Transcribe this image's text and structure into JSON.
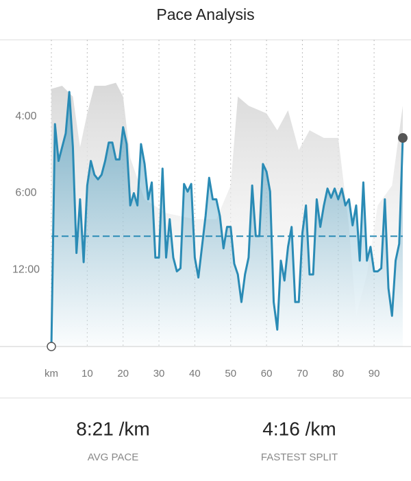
{
  "chart_data": {
    "type": "line",
    "title": "Pace Analysis",
    "xlim": [
      0,
      98
    ],
    "xticks": [
      {
        "value": 0,
        "label": "km"
      },
      10,
      20,
      30,
      40,
      50,
      60,
      70,
      80,
      90
    ],
    "ylim": [
      0,
      20
    ],
    "yticks": [
      {
        "value": 15,
        "label": "4:00"
      },
      {
        "value": 10,
        "label": "6:00"
      },
      {
        "value": 5,
        "label": "12:00"
      }
    ],
    "color": "#2a8bb5",
    "x": [
      0,
      1,
      2,
      3,
      4,
      5,
      6,
      7,
      8,
      9,
      10,
      11,
      12,
      13,
      14,
      15,
      16,
      17,
      18,
      19,
      20,
      21,
      22,
      23,
      24,
      25,
      26,
      27,
      28,
      29,
      30,
      31,
      32,
      33,
      34,
      35,
      36,
      37,
      38,
      39,
      40,
      41,
      42,
      43,
      44,
      45,
      46,
      47,
      48,
      49,
      50,
      51,
      52,
      53,
      54,
      55,
      56,
      57,
      58,
      59,
      60,
      61,
      62,
      63,
      64,
      65,
      66,
      67,
      68,
      69,
      70,
      71,
      72,
      73,
      74,
      75,
      76,
      77,
      78,
      79,
      80,
      81,
      82,
      83,
      84,
      85,
      86,
      87,
      88,
      89,
      90,
      91,
      92,
      93,
      94,
      95,
      96,
      97,
      98
    ],
    "values": [
      0,
      14.5,
      12.1,
      13.0,
      13.9,
      16.6,
      13.0,
      6.1,
      9.6,
      5.5,
      10.5,
      12.1,
      11.2,
      10.9,
      11.2,
      12.1,
      13.3,
      13.3,
      12.2,
      12.2,
      14.3,
      13.2,
      9.2,
      10.0,
      9.2,
      13.2,
      11.9,
      9.6,
      10.7,
      5.8,
      5.8,
      11.6,
      5.8,
      8.3,
      5.8,
      4.9,
      5.1,
      10.6,
      10.1,
      10.6,
      5.8,
      4.5,
      6.5,
      8.5,
      11.0,
      9.6,
      9.6,
      8.5,
      6.4,
      7.8,
      7.8,
      5.4,
      4.7,
      2.9,
      4.7,
      5.8,
      10.5,
      7.2,
      7.2,
      11.9,
      11.4,
      10.1,
      2.9,
      1.1,
      5.6,
      4.3,
      6.5,
      7.8,
      2.9,
      2.9,
      7.4,
      9.2,
      4.7,
      4.7,
      9.6,
      7.8,
      9.2,
      10.3,
      9.7,
      10.3,
      9.6,
      10.3,
      9.2,
      9.6,
      7.9,
      9.2,
      5.6,
      10.7,
      5.6,
      6.5,
      4.9,
      4.9,
      5.1,
      9.6,
      3.8,
      2.0,
      5.6,
      6.7,
      13.6
    ],
    "average": 7.19,
    "area_color": "#dedede",
    "area_x": [
      0,
      3,
      6,
      8,
      10,
      12,
      15,
      18,
      20,
      22,
      26,
      32,
      40,
      46,
      50,
      52,
      55,
      60,
      63,
      66,
      69,
      72,
      76,
      80,
      83,
      85,
      88,
      91,
      95,
      98
    ],
    "area_values": [
      16.8,
      17.0,
      16.3,
      13.0,
      15.2,
      17.0,
      17.0,
      17.2,
      16.3,
      12.3,
      9.6,
      8.7,
      8.3,
      8.3,
      10.5,
      16.3,
      15.7,
      15.2,
      14.1,
      15.4,
      12.8,
      14.1,
      13.6,
      13.6,
      7.8,
      2.0,
      4.7,
      9.2,
      10.5,
      15.7
    ]
  },
  "stats": [
    {
      "value": "8:21 /km",
      "label": "AVG PACE"
    },
    {
      "value": "4:16 /km",
      "label": "FASTEST SPLIT"
    }
  ]
}
